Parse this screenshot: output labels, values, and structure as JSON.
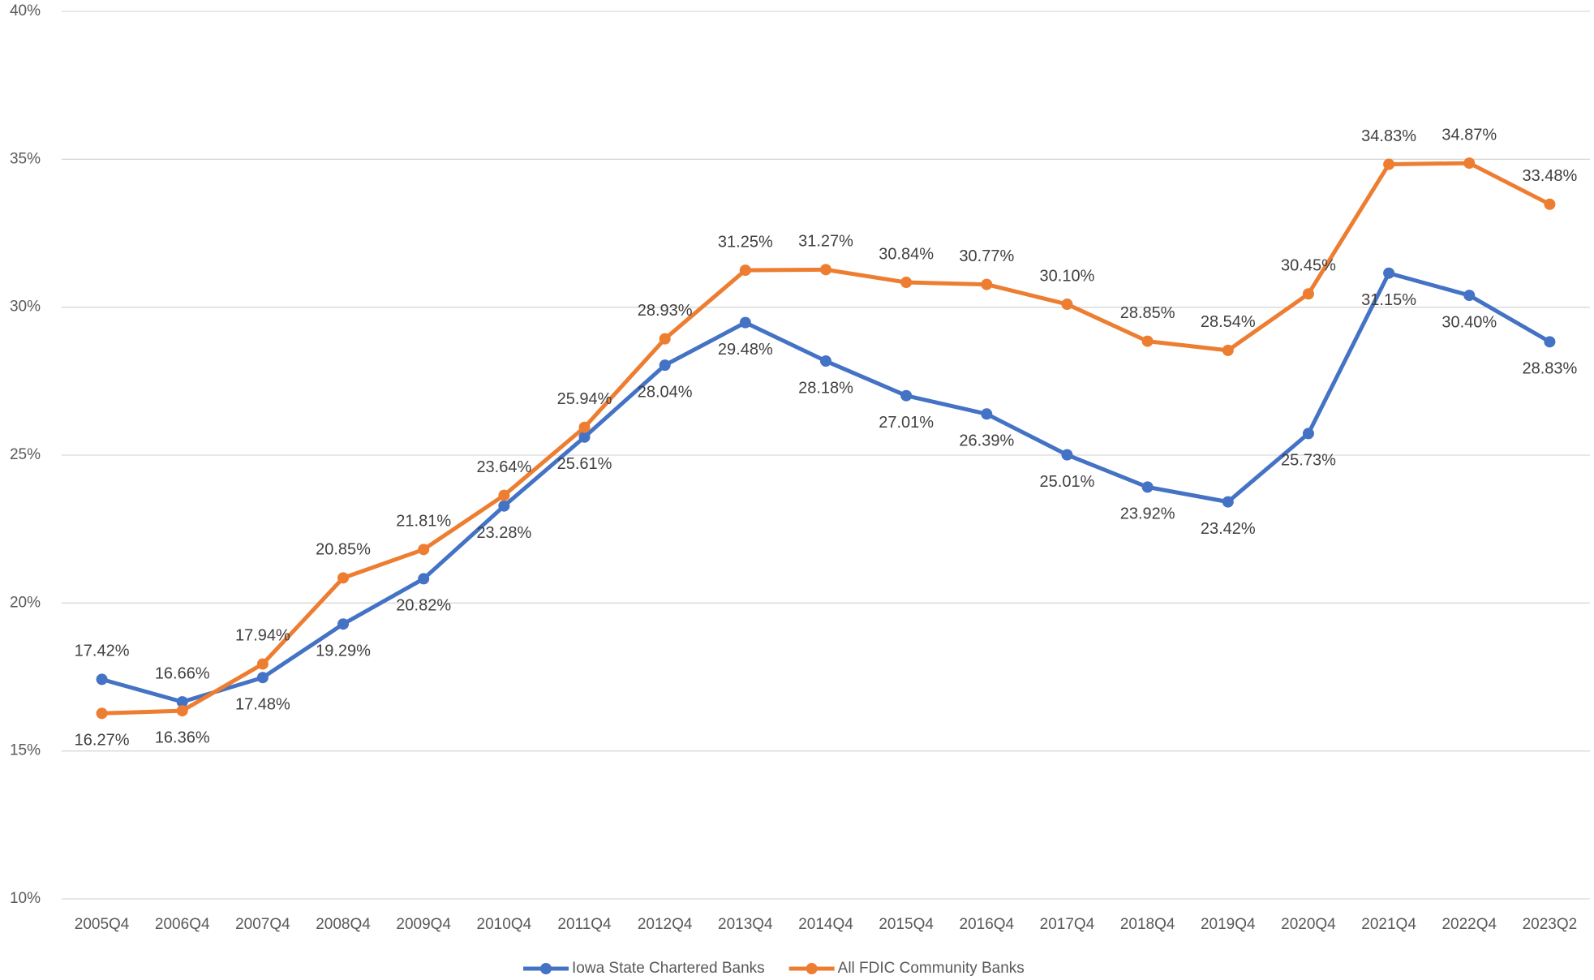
{
  "chart_data": {
    "type": "line",
    "categories": [
      "2005Q4",
      "2006Q4",
      "2007Q4",
      "2008Q4",
      "2009Q4",
      "2010Q4",
      "2011Q4",
      "2012Q4",
      "2013Q4",
      "2014Q4",
      "2015Q4",
      "2016Q4",
      "2017Q4",
      "2018Q4",
      "2019Q4",
      "2020Q4",
      "2021Q4",
      "2022Q4",
      "2023Q2"
    ],
    "series": [
      {
        "name": "Iowa State Chartered Banks",
        "color": "#4472c4",
        "values": [
          17.42,
          16.66,
          17.48,
          19.29,
          20.82,
          23.28,
          25.61,
          28.04,
          29.48,
          28.18,
          27.01,
          26.39,
          25.01,
          23.92,
          23.42,
          25.73,
          31.15,
          30.4,
          28.83
        ],
        "value_labels": [
          "17.42%",
          "16.66%",
          "17.48%",
          "19.29%",
          "20.82%",
          "23.28%",
          "25.61%",
          "28.04%",
          "29.48%",
          "28.18%",
          "27.01%",
          "26.39%",
          "25.01%",
          "23.92%",
          "23.42%",
          "25.73%",
          "31.15%",
          "30.40%",
          "28.83%"
        ]
      },
      {
        "name": "All FDIC Community Banks",
        "color": "#ed7d31",
        "values": [
          16.27,
          16.36,
          17.94,
          20.85,
          21.81,
          23.64,
          25.94,
          28.93,
          31.25,
          31.27,
          30.84,
          30.77,
          30.1,
          28.85,
          28.54,
          30.45,
          34.83,
          34.87,
          33.48
        ],
        "value_labels": [
          "16.27%",
          "16.36%",
          "17.94%",
          "20.85%",
          "21.81%",
          "23.64%",
          "25.94%",
          "28.93%",
          "31.25%",
          "31.27%",
          "30.84%",
          "30.77%",
          "30.10%",
          "28.85%",
          "28.54%",
          "30.45%",
          "34.83%",
          "34.87%",
          "33.48%"
        ]
      }
    ],
    "ylim": [
      10,
      40
    ],
    "yticks": [
      {
        "value": 10,
        "label": "10%"
      },
      {
        "value": 15,
        "label": "15%"
      },
      {
        "value": 20,
        "label": "20%"
      },
      {
        "value": 25,
        "label": "25%"
      },
      {
        "value": 30,
        "label": "30%"
      },
      {
        "value": 35,
        "label": "35%"
      },
      {
        "value": 40,
        "label": "40%"
      }
    ],
    "grid": true,
    "legend": "bottom"
  }
}
